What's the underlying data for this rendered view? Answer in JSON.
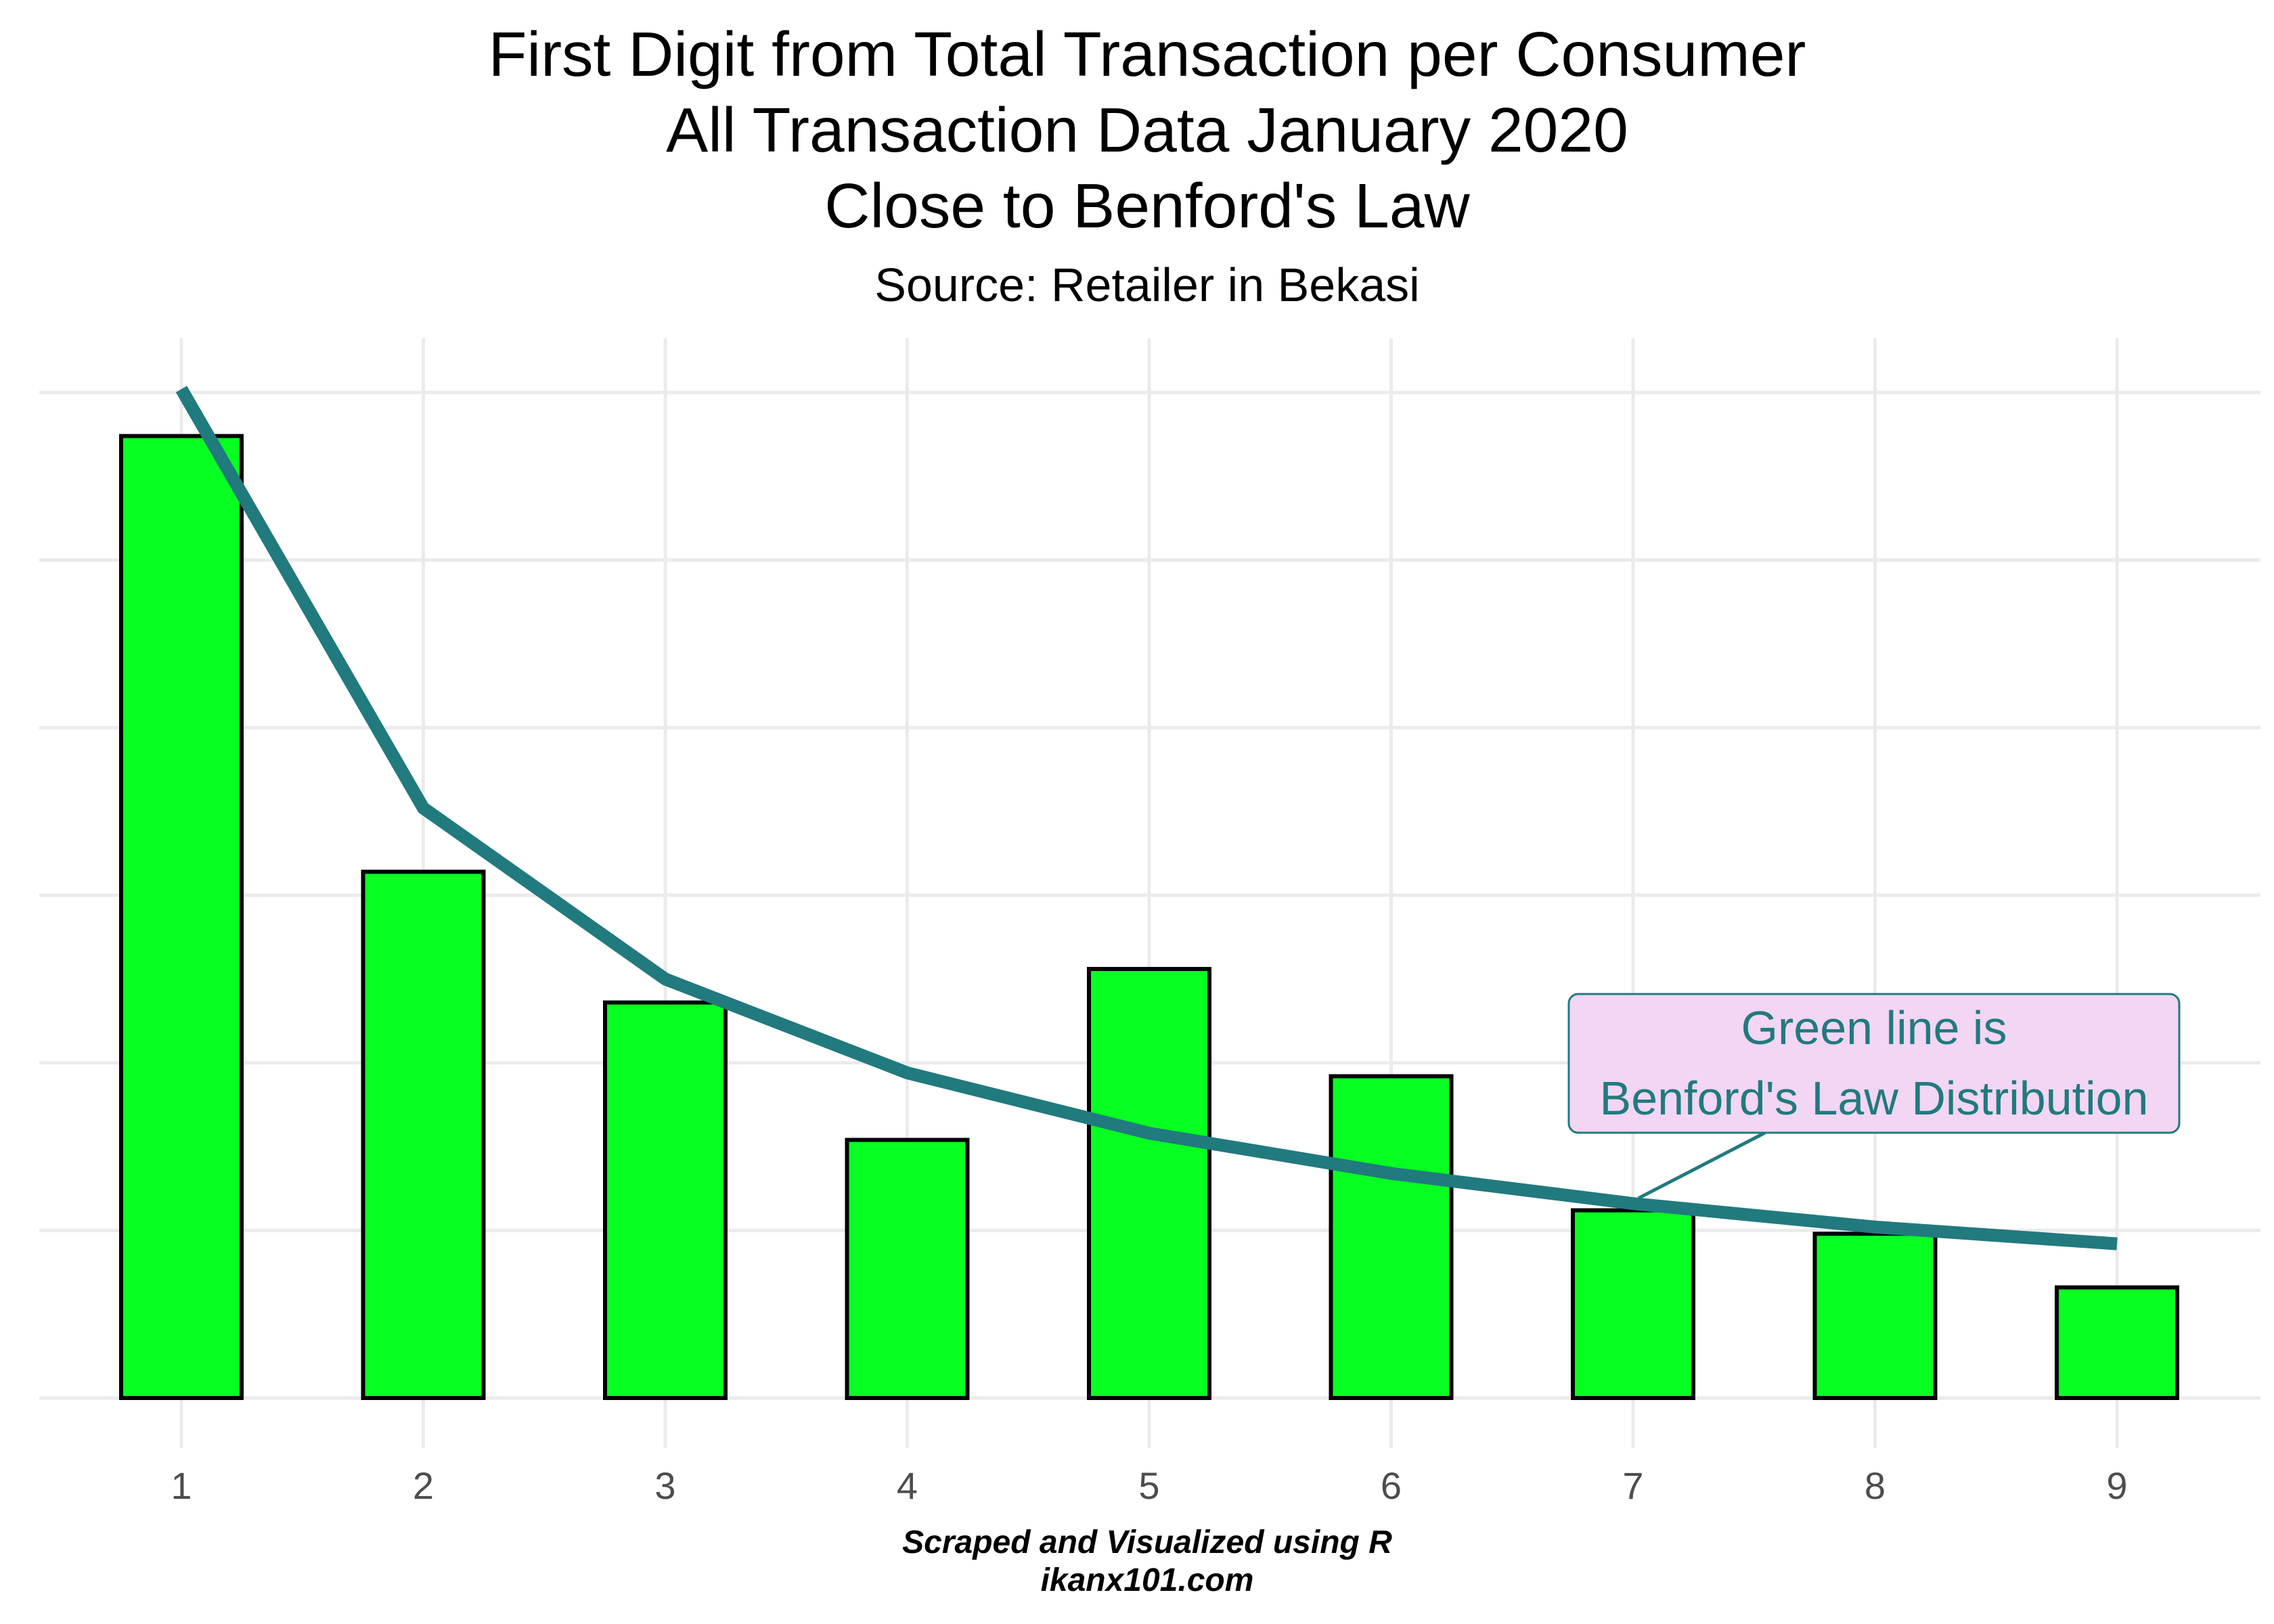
{
  "chart_data": {
    "type": "bar",
    "title_lines": [
      "First Digit from Total Transaction per Consumer",
      "All Transaction Data January 2020",
      "Close to Benford's Law"
    ],
    "subtitle": "Source: Retailer in Bekasi",
    "caption_lines": [
      "Scraped and Visualized using R",
      "ikanx101.com"
    ],
    "categories": [
      "1",
      "2",
      "3",
      "4",
      "5",
      "6",
      "7",
      "8",
      "9"
    ],
    "series": [
      {
        "type": "bar",
        "values": [
          0.287,
          0.157,
          0.118,
          0.077,
          0.128,
          0.096,
          0.056,
          0.049,
          0.033
        ]
      },
      {
        "type": "line",
        "values": [
          0.301,
          0.176,
          0.125,
          0.097,
          0.079,
          0.067,
          0.058,
          0.051,
          0.046
        ]
      }
    ],
    "ylim": [
      0,
      0.3
    ],
    "y_ticks_shown": false,
    "grid": true,
    "annotation": {
      "lines": [
        "Green line is",
        "Benford's Law Distribution"
      ],
      "points_to": "7"
    },
    "colors": {
      "bar_fill": "#07ff22",
      "bar_stroke": "#000000",
      "line": "#217a7e",
      "label_fill": "#f2d6f3",
      "label_text": "#217a7e",
      "grid": "#ebebeb"
    }
  }
}
